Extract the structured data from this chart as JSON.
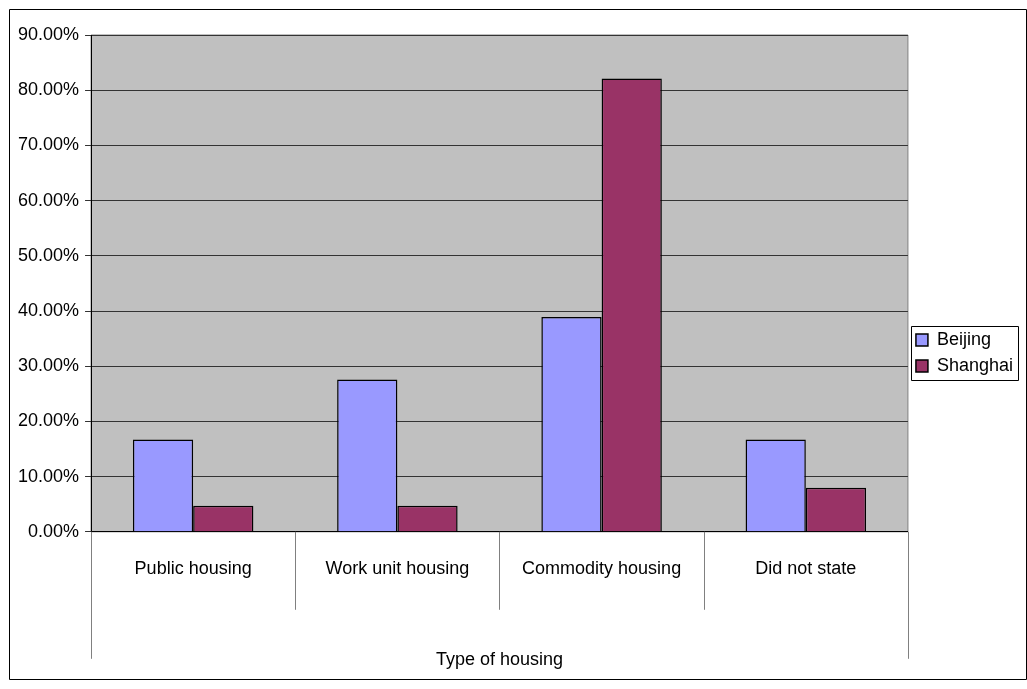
{
  "chart_data": {
    "type": "bar",
    "xlabel": "Type of housing",
    "categories": [
      "Public housing",
      "Work unit housing",
      "Commodity housing",
      "Did not state"
    ],
    "series": [
      {
        "name": "Beijing",
        "color": "#9999ff",
        "values": [
          16.7,
          27.6,
          38.9,
          16.7
        ]
      },
      {
        "name": "Shanghai",
        "color": "#993366",
        "values": [
          4.7,
          4.7,
          82.1,
          8.0
        ]
      }
    ],
    "ylim": [
      0,
      90
    ],
    "yticks": [
      {
        "value": 0,
        "label": "0.00%"
      },
      {
        "value": 10,
        "label": "10.00%"
      },
      {
        "value": 20,
        "label": "20.00%"
      },
      {
        "value": 30,
        "label": "30.00%"
      },
      {
        "value": 40,
        "label": "40.00%"
      },
      {
        "value": 50,
        "label": "50.00%"
      },
      {
        "value": 60,
        "label": "60.00%"
      },
      {
        "value": 70,
        "label": "70.00%"
      },
      {
        "value": 80,
        "label": "80.00%"
      },
      {
        "value": 90,
        "label": "90.00%"
      }
    ],
    "grid": "y",
    "legend": "right"
  }
}
